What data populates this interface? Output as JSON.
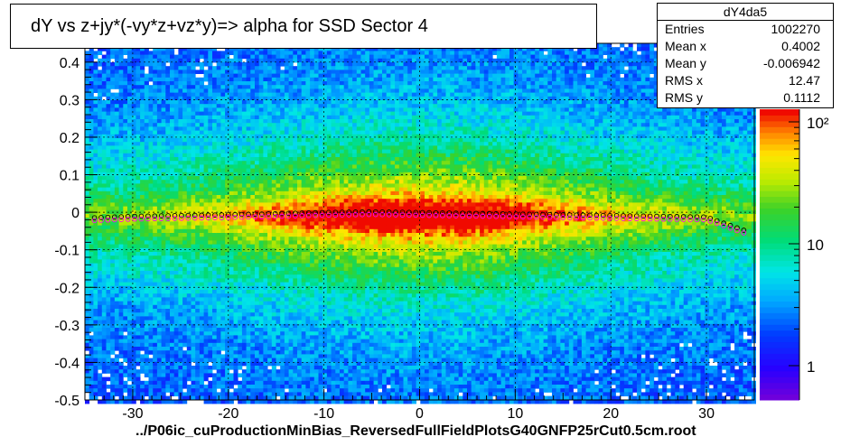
{
  "title": "dY vs  z+jy*(-vy*z+vz*y)=> alpha for SSD Sector 4",
  "stats": {
    "name": "dY4da5",
    "rows": [
      {
        "label": "Entries",
        "value": "1002270"
      },
      {
        "label": "Mean x",
        "value": "0.4002"
      },
      {
        "label": "Mean y",
        "value": "-0.006942"
      },
      {
        "label": "RMS x",
        "value": "12.47"
      },
      {
        "label": "RMS y",
        "value": "0.1112"
      }
    ]
  },
  "footer": "../P06ic_cuProductionMinBias_ReversedFullFieldPlotsG40GNFP25rCut0.5cm.root",
  "chart_data": {
    "type": "heatmap",
    "xlim": [
      -35,
      35
    ],
    "ylim": [
      -0.5,
      0.45
    ],
    "xticks": [
      -30,
      -20,
      -10,
      0,
      10,
      20,
      30
    ],
    "yticks": [
      -0.5,
      -0.4,
      -0.3,
      -0.2,
      -0.1,
      0,
      0.1,
      0.2,
      0.3,
      0.4
    ],
    "ytick_labels": [
      "-0.5",
      "-0.4",
      "-0.3",
      "-0.2",
      "-0.1",
      "0",
      "0.1",
      "0.2",
      "0.3",
      "0.4"
    ],
    "grid": true,
    "colorbar": {
      "scale": "log",
      "ticks": [
        1,
        10,
        100
      ],
      "tick_labels": [
        "1",
        "10",
        "10²"
      ]
    },
    "profile_means": {
      "x": [
        -34,
        -30,
        -25,
        -20,
        -15,
        -10,
        -5,
        0,
        5,
        10,
        15,
        20,
        25,
        30,
        34
      ],
      "y": [
        -0.016,
        -0.012,
        -0.01,
        -0.008,
        -0.005,
        -0.002,
        0.0,
        -0.002,
        -0.004,
        -0.006,
        -0.008,
        -0.01,
        -0.012,
        -0.014,
        -0.05
      ]
    }
  }
}
